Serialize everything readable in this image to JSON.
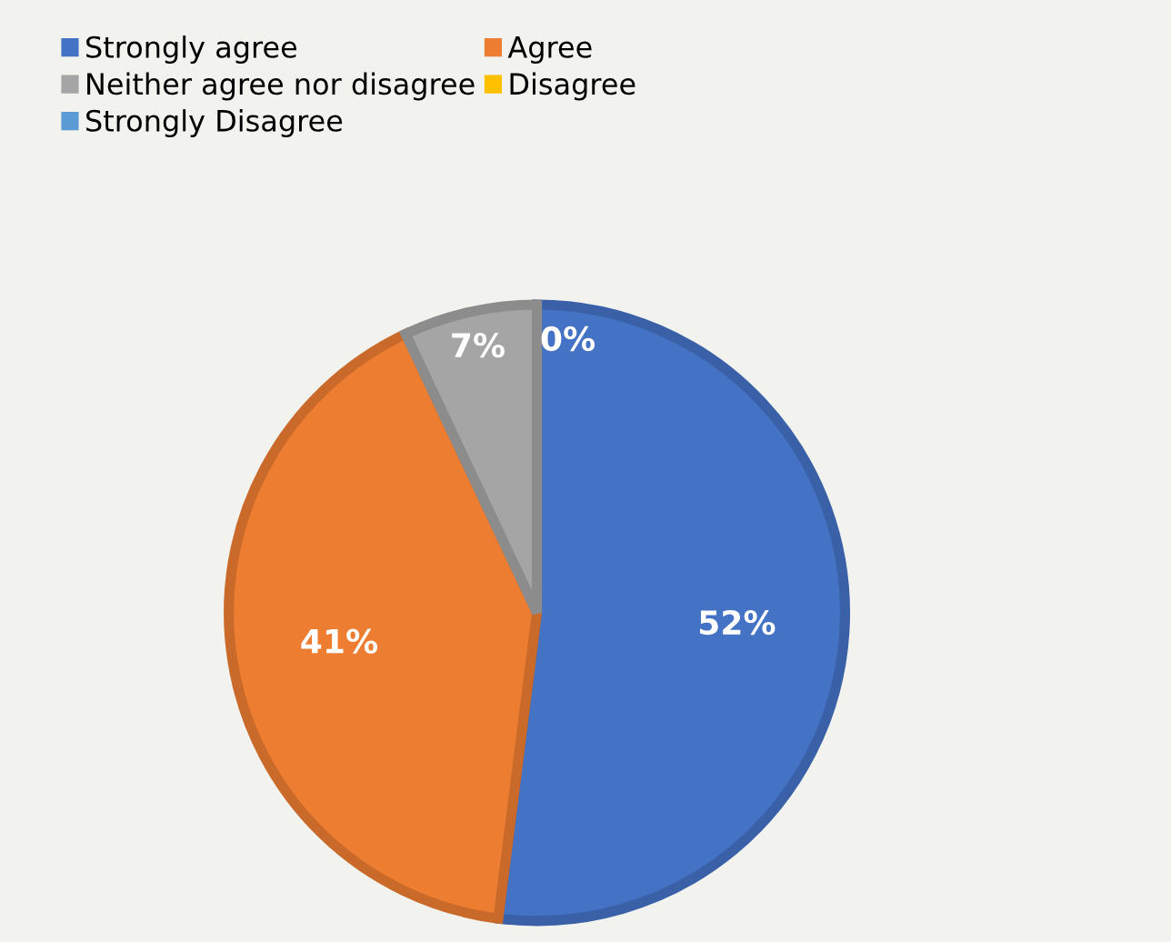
{
  "chart_data": {
    "type": "pie",
    "categories": [
      "Strongly agree",
      "Agree",
      "Neither agree nor disagree",
      "Disagree",
      "Strongly Disagree"
    ],
    "values": [
      52,
      41,
      7,
      0,
      0
    ],
    "colors": [
      "#4472c4",
      "#ed7d31",
      "#a5a5a5",
      "#ffc000",
      "#5b9bd5"
    ],
    "value_labels": [
      "52%",
      "41%",
      "7%",
      "0%",
      null
    ],
    "legend": "top left"
  }
}
